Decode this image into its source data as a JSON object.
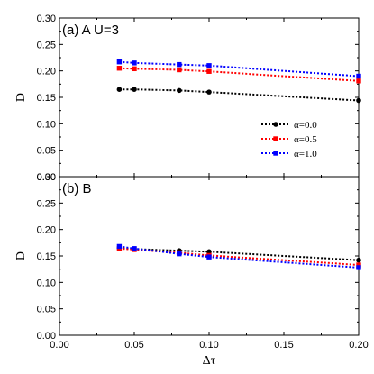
{
  "chart_data": [
    {
      "type": "line",
      "panel_label": "(a) A U=3",
      "ylabel": "D",
      "xlabel": "",
      "xlim": [
        0.0,
        0.2
      ],
      "ylim": [
        0.0,
        0.3
      ],
      "yticks": [
        "0.00",
        "0.05",
        "0.10",
        "0.15",
        "0.20",
        "0.25",
        "0.30"
      ],
      "grid": false,
      "legend_position": "right",
      "x": [
        0.04,
        0.05,
        0.08,
        0.1,
        0.2
      ],
      "series": [
        {
          "name": "α=0.0",
          "color": "#000000",
          "values": [
            0.165,
            0.165,
            0.163,
            0.16,
            0.144
          ]
        },
        {
          "name": "α=0.5",
          "color": "#ff0000",
          "values": [
            0.205,
            0.204,
            0.202,
            0.199,
            0.181
          ]
        },
        {
          "name": "α=1.0",
          "color": "#0000ff",
          "values": [
            0.217,
            0.215,
            0.212,
            0.21,
            0.19
          ]
        }
      ]
    },
    {
      "type": "line",
      "panel_label": "(b) B",
      "ylabel": "D",
      "xlabel": "Δτ",
      "xlim": [
        0.0,
        0.2
      ],
      "ylim": [
        0.0,
        0.3
      ],
      "xticks": [
        "0.00",
        "0.05",
        "0.10",
        "0.15",
        "0.20"
      ],
      "yticks": [
        "0.00",
        "0.05",
        "0.10",
        "0.15",
        "0.20",
        "0.25",
        "0.30"
      ],
      "grid": false,
      "x": [
        0.04,
        0.05,
        0.08,
        0.1,
        0.2
      ],
      "series": [
        {
          "name": "α=0.0",
          "color": "#000000",
          "values": [
            0.165,
            0.163,
            0.16,
            0.158,
            0.142
          ]
        },
        {
          "name": "α=0.5",
          "color": "#ff0000",
          "values": [
            0.164,
            0.162,
            0.156,
            0.151,
            0.133
          ]
        },
        {
          "name": "α=1.0",
          "color": "#0000ff",
          "values": [
            0.168,
            0.164,
            0.154,
            0.148,
            0.128
          ]
        }
      ]
    }
  ]
}
